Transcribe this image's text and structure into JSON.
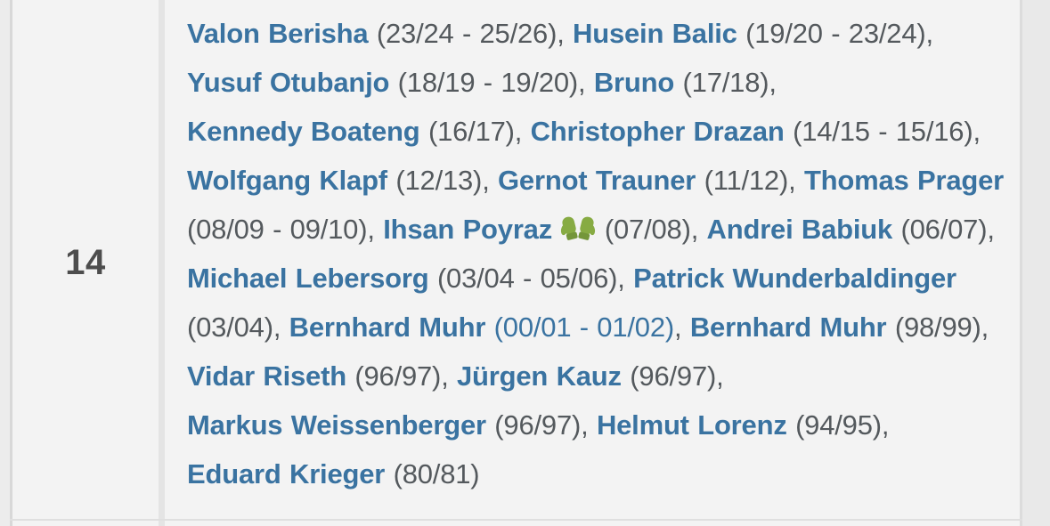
{
  "row": {
    "shirt_number": "14",
    "separator": ", ",
    "goalkeeper_icon": "🧤",
    "players": [
      {
        "name": "Valon Berisha",
        "years": "(23/24 - 25/26)"
      },
      {
        "name": "Husein Balic",
        "years": "(19/20 - 23/24)"
      },
      {
        "name": "Yusuf Otubanjo",
        "years": "(18/19 - 19/20)"
      },
      {
        "name": "Bruno",
        "years": "(17/18)"
      },
      {
        "name": "Kennedy Boateng",
        "years": "(16/17)"
      },
      {
        "name": "Christopher Drazan",
        "years": "(14/15 - 15/16)"
      },
      {
        "name": "Wolfgang Klapf",
        "years": "(12/13)"
      },
      {
        "name": "Gernot Trauner",
        "years": "(11/12)"
      },
      {
        "name": "Thomas Prager",
        "years": "(08/09 - 09/10)"
      },
      {
        "name": "Ihsan Poyraz",
        "years": "(07/08)",
        "goalkeeper": true
      },
      {
        "name": "Andrei Babiuk",
        "years": "(06/07)"
      },
      {
        "name": "Michael Lebersorg",
        "years": "(03/04 - 05/06)"
      },
      {
        "name": "Patrick Wunderbaldinger",
        "years": "(03/04)"
      },
      {
        "name": "Bernhard Muhr",
        "years": "(00/01 - 01/02)",
        "years_in_link": true
      },
      {
        "name": "Bernhard Muhr",
        "years": "(98/99)"
      },
      {
        "name": "Vidar Riseth",
        "years": "(96/97)"
      },
      {
        "name": "Jürgen Kauz",
        "years": "(96/97)"
      },
      {
        "name": "Markus Weissenberger",
        "years": "(96/97)"
      },
      {
        "name": "Helmut Lorenz",
        "years": "(94/95)"
      },
      {
        "name": "Eduard Krieger",
        "years": "(80/81)"
      }
    ]
  },
  "colors": {
    "link_blue": "#3a73a1",
    "years_gray": "#54595d",
    "number_gray": "#4d4d4d",
    "cell_bg": "#f3f3f3",
    "divider": "#e4e4e4",
    "gloves_green": "#87ab43",
    "gloves_cuff_green": "#74963a"
  }
}
